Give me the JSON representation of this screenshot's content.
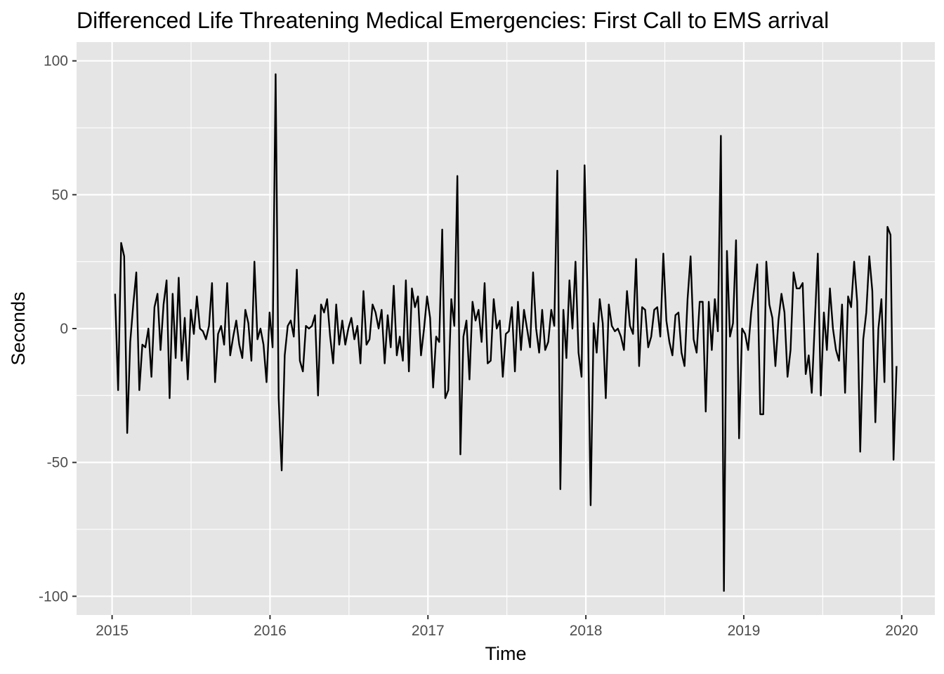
{
  "chart_data": {
    "type": "line",
    "title": "Differenced Life Threatening Medical Emergencies: First Call to EMS arrival",
    "xlabel": "Time",
    "ylabel": "Seconds",
    "xlim": [
      2014.775,
      2020.21
    ],
    "ylim": [
      -107,
      107
    ],
    "x_ticks": [
      2015,
      2016,
      2017,
      2018,
      2019,
      2020
    ],
    "x_tick_labels": [
      "2015",
      "2016",
      "2017",
      "2018",
      "2019",
      "2020"
    ],
    "y_ticks": [
      100,
      50,
      0,
      -50,
      -100
    ],
    "y_tick_labels": [
      "100",
      "50",
      "0",
      "-50",
      "-100"
    ],
    "grid": true,
    "panel_background": "#e5e5e5",
    "grid_color": "#ffffff",
    "line_color": "#000000",
    "x_start": 2015.019,
    "x_step": 0.01918,
    "series": [
      {
        "values": [
          13,
          -23,
          32,
          27,
          -39,
          -5,
          9,
          21,
          -23,
          -6,
          -7,
          0,
          -18,
          8,
          13,
          -8,
          9,
          18,
          -26,
          13,
          -11,
          19,
          -12,
          4,
          -19,
          7,
          -2,
          12,
          0,
          -1,
          -4,
          1,
          17,
          -20,
          -2,
          1,
          -6,
          17,
          -10,
          -3,
          3,
          -6,
          -11,
          7,
          2,
          -12,
          25,
          -4,
          0,
          -6,
          -20,
          6,
          -7,
          95,
          -26,
          -53,
          -10,
          1,
          3,
          -3,
          22,
          -12,
          -16,
          1,
          0,
          1,
          5,
          -25,
          9,
          6,
          11,
          -3,
          -13,
          9,
          -6,
          3,
          -6,
          0,
          4,
          -4,
          1,
          -13,
          14,
          -6,
          -4,
          9,
          6,
          0,
          7,
          -13,
          5,
          -7,
          16,
          -10,
          -3,
          -12,
          18,
          -16,
          15,
          8,
          12,
          -10,
          0,
          12,
          4,
          -22,
          -3,
          -5,
          37,
          -26,
          -23,
          11,
          1,
          57,
          -47,
          -3,
          3,
          -19,
          10,
          3,
          7,
          -5,
          17,
          -13,
          -12,
          11,
          0,
          3,
          -18,
          -2,
          -1,
          8,
          -16,
          10,
          -8,
          7,
          0,
          -7,
          21,
          0,
          -9,
          7,
          -8,
          -5,
          7,
          1,
          59,
          -60,
          7,
          -11,
          18,
          0,
          25,
          -9,
          -18,
          61,
          11,
          -66,
          2,
          -9,
          11,
          2,
          -26,
          9,
          1,
          -1,
          0,
          -3,
          -8,
          14,
          1,
          -2,
          26,
          -14,
          8,
          7,
          -7,
          -3,
          7,
          8,
          -3,
          28,
          3,
          -5,
          -10,
          5,
          6,
          -9,
          -14,
          11,
          27,
          -4,
          -9,
          10,
          10,
          -31,
          10,
          -8,
          11,
          -1,
          72,
          -98,
          29,
          -3,
          2,
          33,
          -41,
          0,
          -2,
          -8,
          6,
          15,
          24,
          -32,
          -32,
          25,
          9,
          4,
          -14,
          3,
          13,
          6,
          -18,
          -8,
          21,
          15,
          15,
          17,
          -17,
          -10,
          -24,
          2,
          28,
          -25,
          6,
          -8,
          15,
          0,
          -8,
          -12,
          9,
          -24,
          12,
          8,
          25,
          10,
          -46,
          -4,
          6,
          27,
          14,
          -35,
          0,
          11,
          -20,
          38,
          35,
          -49,
          -14
        ]
      }
    ]
  }
}
